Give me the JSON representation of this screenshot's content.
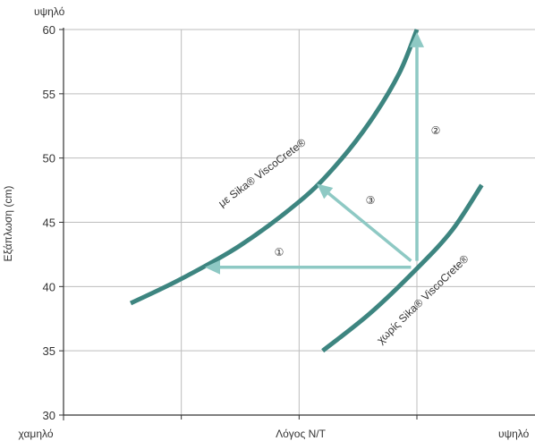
{
  "chart_data": {
    "type": "line",
    "title": "",
    "xlabel": "Λόγος N/T",
    "ylabel": "Εξάπλωση (cm)",
    "x_low_label": "χαμηλό",
    "x_high_label": "υψηλό",
    "y_high_label": "υψηλό",
    "ylim": [
      30,
      60
    ],
    "yticks": [
      "30",
      "35",
      "40",
      "45",
      "50",
      "55",
      "60"
    ],
    "xlim": [
      0,
      4
    ],
    "grid": true,
    "series": [
      {
        "name": "με Sika® ViscoCrete®",
        "sup_text": "με Sika® ViscoCrete®",
        "color": "#3d8580",
        "x": [
          0.57,
          1.0,
          1.5,
          2.0,
          2.3,
          2.6,
          2.85,
          3.0
        ],
        "y": [
          38.7,
          40.6,
          43.2,
          46.6,
          49.3,
          52.8,
          56.6,
          60.0
        ]
      },
      {
        "name": "χωρίς Sika® ViscoCrete®",
        "sup_text": "χωρίς Sika® ViscoCrete®",
        "color": "#3d8580",
        "x": [
          2.2,
          2.6,
          3.0,
          3.3,
          3.55
        ],
        "y": [
          35.0,
          37.9,
          41.4,
          44.4,
          47.9
        ]
      }
    ],
    "arrows": [
      {
        "label": "①",
        "from": [
          2.95,
          41.5
        ],
        "to": [
          1.2,
          41.5
        ]
      },
      {
        "label": "②",
        "from": [
          3.0,
          42.0
        ],
        "to": [
          3.0,
          59.8
        ]
      },
      {
        "label": "③",
        "from": [
          2.95,
          42.0
        ],
        "to": [
          2.15,
          48.0
        ]
      }
    ],
    "arrow_color": "#8ec9c4"
  }
}
